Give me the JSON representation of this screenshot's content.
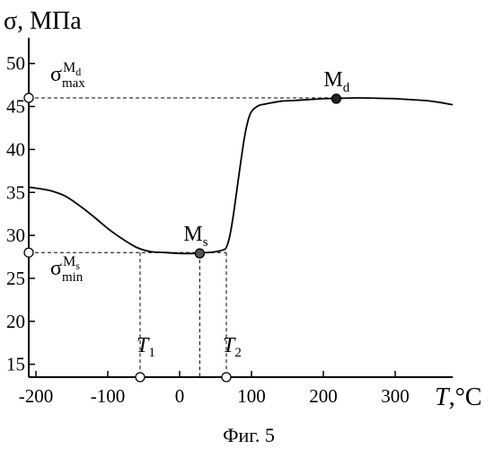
{
  "chart_data": {
    "type": "line",
    "ylabel": "σ, МПа",
    "xlabel_italic": "T",
    "xlabel_unit": ",°C",
    "caption": "Фиг. 5",
    "xlim": [
      -210,
      380
    ],
    "ylim": [
      13.5,
      53
    ],
    "xticks": [
      -200,
      -100,
      0,
      100,
      200,
      300
    ],
    "xtick_labels": [
      "-200",
      "-100",
      "0",
      "100",
      "200",
      "300"
    ],
    "yticks": [
      15,
      20,
      25,
      30,
      35,
      40,
      45,
      50
    ],
    "ytick_labels": [
      "15",
      "20",
      "25",
      "30",
      "35",
      "40",
      "45",
      "50"
    ],
    "series": [
      {
        "x": [
          -210,
          -200,
          -180,
          -160,
          -140,
          -120,
          -100,
          -80,
          -60,
          -40,
          -20,
          0,
          20,
          30,
          40,
          50,
          60,
          65,
          70,
          75,
          80,
          85,
          90,
          95,
          100,
          110,
          120,
          140,
          160,
          180,
          200,
          220,
          250,
          280,
          300,
          320,
          340,
          360,
          380
        ],
        "y": [
          35.6,
          35.5,
          35.2,
          34.6,
          33.5,
          32.2,
          30.8,
          29.6,
          28.6,
          28.1,
          28.0,
          27.9,
          27.9,
          28.0,
          28.0,
          28.1,
          28.3,
          28.6,
          30.0,
          32.5,
          35.5,
          38.5,
          41.3,
          43.3,
          44.4,
          45.1,
          45.3,
          45.6,
          45.7,
          45.8,
          45.9,
          45.95,
          46.0,
          45.95,
          45.9,
          45.8,
          45.7,
          45.5,
          45.2
        ]
      }
    ],
    "points": [
      {
        "label": "Ms",
        "main": "M",
        "sub": "s",
        "x": 28,
        "y": 27.9,
        "fill": "#555555"
      },
      {
        "label": "Md",
        "main": "M",
        "sub": "d",
        "x": 218,
        "y": 45.9,
        "fill": "#222222"
      }
    ],
    "reference_levels": {
      "sigma_max": {
        "y": 46,
        "x_to": 218,
        "main": "σ",
        "sub": "max",
        "sup": "Md",
        "sup_main": "M",
        "sup_sub": "d"
      },
      "sigma_min": {
        "y": 28,
        "x_to": 65,
        "main": "σ",
        "sub": "min",
        "sup": "Ms",
        "sup_main": "M",
        "sup_sub": "s"
      }
    },
    "temperature_marks": [
      {
        "label": "T1",
        "main": "T",
        "sub": "1",
        "x": -55
      },
      {
        "label": "T2",
        "main": "T",
        "sub": "2",
        "x": 65
      }
    ],
    "ms_drop_x": 28,
    "grid": false,
    "legend": "none",
    "colors": {
      "line": "#000000",
      "background": "#ffffff"
    }
  }
}
